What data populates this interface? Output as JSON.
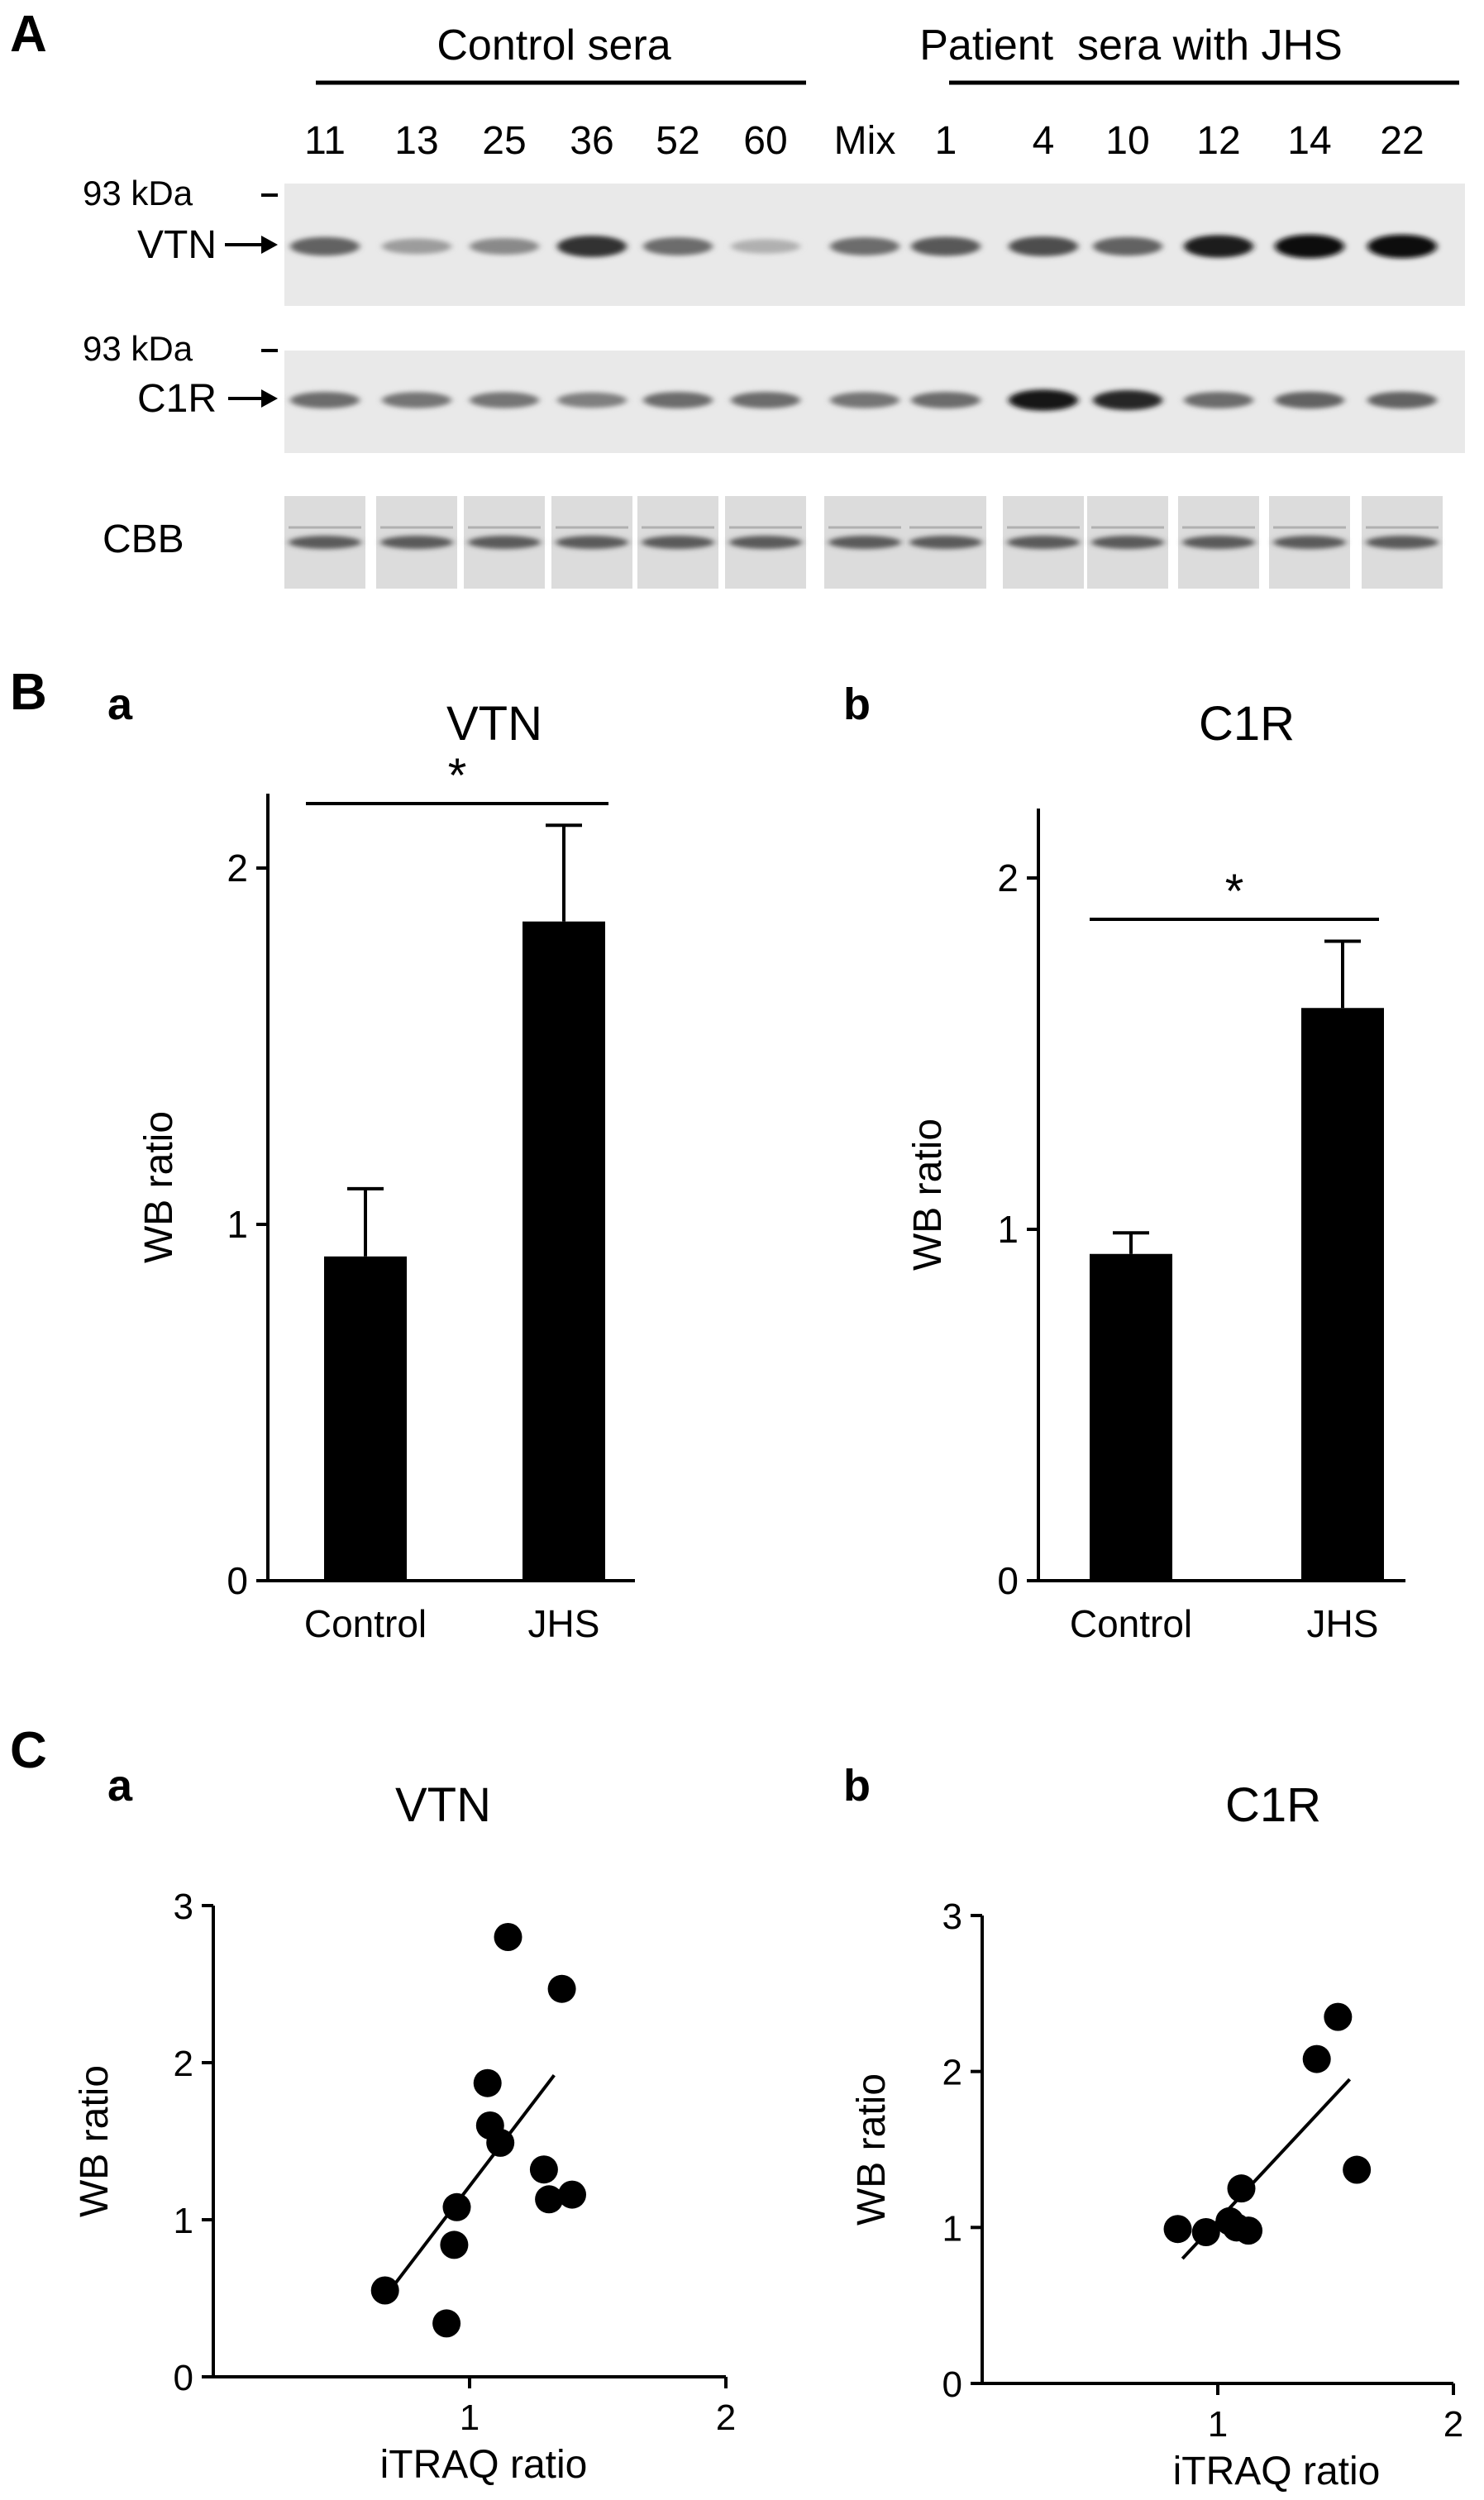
{
  "panel_a": {
    "letter": "A",
    "group_control": "Control sera",
    "group_patient": "Patient  sera with JHS",
    "lanes": [
      "11",
      "13",
      "25",
      "36",
      "52",
      "60",
      "Mix",
      "1",
      "4",
      "10",
      "12",
      "14",
      "22"
    ],
    "blots": [
      {
        "marker": "93 kDa",
        "label": "VTN",
        "band_intensity": [
          0.55,
          0.25,
          0.35,
          0.8,
          0.5,
          0.15,
          0.5,
          0.6,
          0.65,
          0.55,
          0.9,
          1.0,
          1.0
        ]
      },
      {
        "marker": "93 kDa",
        "label": "C1R",
        "band_intensity": [
          0.5,
          0.45,
          0.45,
          0.4,
          0.5,
          0.5,
          0.45,
          0.5,
          0.95,
          0.85,
          0.5,
          0.55,
          0.55
        ]
      }
    ],
    "cbb_label": "CBB"
  },
  "panel_b": {
    "letter": "B"
  },
  "panel_c": {
    "letter": "C"
  },
  "chart_data": [
    {
      "panel": "a",
      "type": "bar",
      "title": "VTN",
      "ylabel": "WB ratio",
      "xlabel": "",
      "categories": [
        "Control",
        "JHS"
      ],
      "values": [
        0.91,
        1.85
      ],
      "errors": [
        0.19,
        0.27
      ],
      "ylim": [
        0,
        2
      ],
      "yticks": [
        0,
        1,
        2
      ],
      "significance": "*"
    },
    {
      "panel": "b",
      "type": "bar",
      "title": "C1R",
      "ylabel": "WB ratio",
      "xlabel": "",
      "categories": [
        "Control",
        "JHS"
      ],
      "values": [
        0.93,
        1.63
      ],
      "errors": [
        0.06,
        0.19
      ],
      "ylim": [
        0,
        2
      ],
      "yticks": [
        0,
        1,
        2
      ],
      "significance": "*"
    },
    {
      "panel": "a",
      "type": "scatter",
      "title": "VTN",
      "xlabel": "iTRAQ ratio",
      "ylabel": "WB ratio",
      "xlim": [
        0,
        2
      ],
      "ylim": [
        0,
        3
      ],
      "xticks": [
        1,
        2
      ],
      "yticks": [
        0,
        1,
        2,
        3
      ],
      "points": [
        {
          "x": 0.67,
          "y": 0.55
        },
        {
          "x": 0.91,
          "y": 0.34
        },
        {
          "x": 0.94,
          "y": 0.84
        },
        {
          "x": 0.95,
          "y": 1.08
        },
        {
          "x": 1.07,
          "y": 1.87
        },
        {
          "x": 1.08,
          "y": 1.6
        },
        {
          "x": 1.12,
          "y": 1.49
        },
        {
          "x": 1.15,
          "y": 2.8
        },
        {
          "x": 1.29,
          "y": 1.32
        },
        {
          "x": 1.31,
          "y": 1.13
        },
        {
          "x": 1.36,
          "y": 2.47
        },
        {
          "x": 1.4,
          "y": 1.16
        }
      ],
      "trendline": [
        {
          "x": 0.68,
          "y": 0.53
        },
        {
          "x": 1.33,
          "y": 1.92
        }
      ]
    },
    {
      "panel": "b",
      "type": "scatter",
      "title": "C1R",
      "xlabel": "iTRAQ ratio",
      "ylabel": "WB ratio",
      "xlim": [
        0,
        2
      ],
      "ylim": [
        0,
        3
      ],
      "xticks": [
        1,
        2
      ],
      "yticks": [
        0,
        1,
        2,
        3
      ],
      "points": [
        {
          "x": 0.83,
          "y": 0.99
        },
        {
          "x": 0.95,
          "y": 0.97
        },
        {
          "x": 1.05,
          "y": 1.04
        },
        {
          "x": 1.08,
          "y": 1.0
        },
        {
          "x": 1.1,
          "y": 1.25
        },
        {
          "x": 1.13,
          "y": 0.98
        },
        {
          "x": 1.42,
          "y": 2.08
        },
        {
          "x": 1.51,
          "y": 2.35
        },
        {
          "x": 1.59,
          "y": 1.37
        }
      ],
      "trendline": [
        {
          "x": 0.85,
          "y": 0.8
        },
        {
          "x": 1.56,
          "y": 1.95
        }
      ]
    }
  ]
}
